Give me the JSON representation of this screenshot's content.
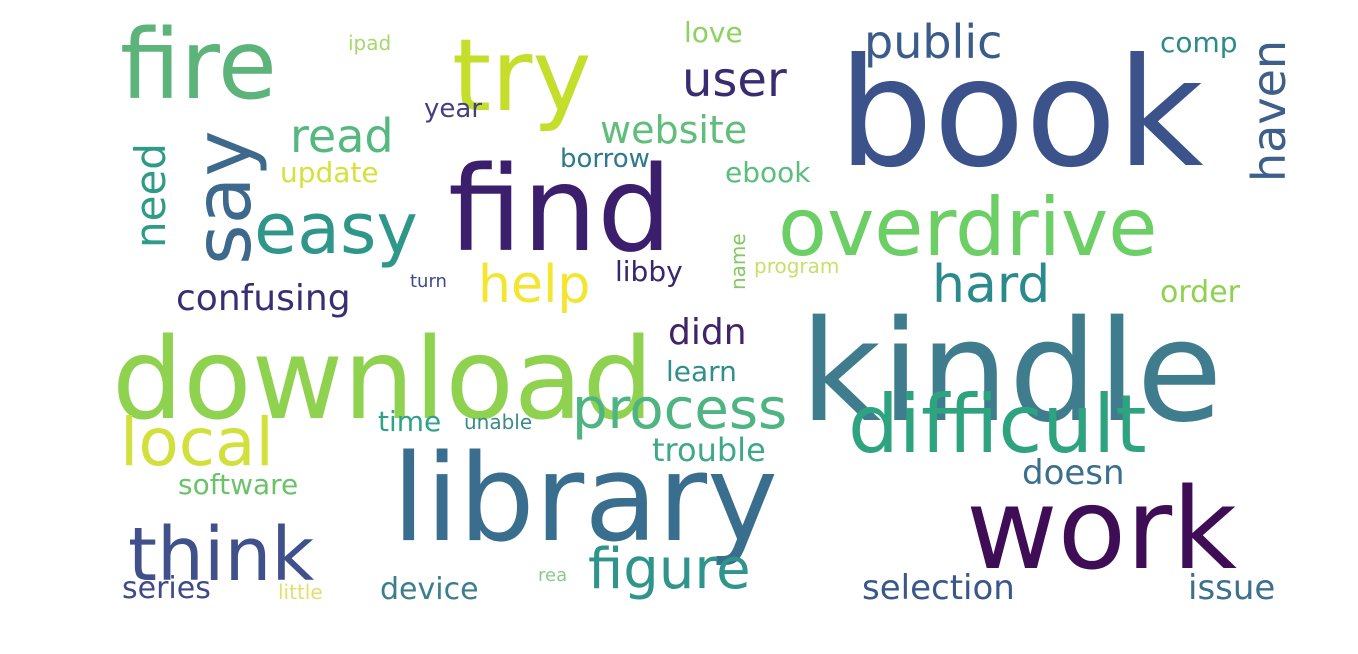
{
  "words": [
    {
      "text": "book",
      "color": "#3b528b"
    },
    {
      "text": "kindle",
      "color": "#3e7c8e"
    },
    {
      "text": "library",
      "color": "#3a6e8e"
    },
    {
      "text": "download",
      "color": "#8fd24f"
    },
    {
      "text": "find",
      "color": "#3b1f6d"
    },
    {
      "text": "try",
      "color": "#c5de2c"
    },
    {
      "text": "fire",
      "color": "#5cb47a"
    },
    {
      "text": "work",
      "color": "#3f0c56"
    },
    {
      "text": "overdrive",
      "color": "#6ccf66"
    },
    {
      "text": "difficult",
      "color": "#2ea37f"
    },
    {
      "text": "say",
      "color": "#3d6a8c"
    },
    {
      "text": "think",
      "color": "#40508b"
    },
    {
      "text": "easy",
      "color": "#2f968a"
    },
    {
      "text": "local",
      "color": "#d2e03c"
    },
    {
      "text": "process",
      "color": "#4eb482"
    },
    {
      "text": "figure",
      "color": "#2f948b"
    },
    {
      "text": "help",
      "color": "#f4e530"
    },
    {
      "text": "hard",
      "color": "#2b8a8c"
    },
    {
      "text": "user",
      "color": "#3a2c71"
    },
    {
      "text": "public",
      "color": "#3a5c8a"
    },
    {
      "text": "read",
      "color": "#55b97f"
    },
    {
      "text": "haven",
      "color": "#3d5f89"
    },
    {
      "text": "need",
      "color": "#2e9b86"
    },
    {
      "text": "website",
      "color": "#60be7a"
    },
    {
      "text": "confusing",
      "color": "#3a2e72"
    },
    {
      "text": "didn",
      "color": "#402468"
    },
    {
      "text": "doesn",
      "color": "#3b6f8e"
    },
    {
      "text": "trouble",
      "color": "#3fa88a"
    },
    {
      "text": "libby",
      "color": "#3a266c"
    },
    {
      "text": "order",
      "color": "#8fd24f"
    },
    {
      "text": "selection",
      "color": "#3a578b"
    },
    {
      "text": "issue",
      "color": "#3e6f8c"
    },
    {
      "text": "series",
      "color": "#3f4a88"
    },
    {
      "text": "device",
      "color": "#3d7e8e"
    },
    {
      "text": "software",
      "color": "#6cc26a"
    },
    {
      "text": "learn",
      "color": "#2f8f8c"
    },
    {
      "text": "time",
      "color": "#2da389"
    },
    {
      "text": "unable",
      "color": "#3a8a8c"
    },
    {
      "text": "update",
      "color": "#d7e13d"
    },
    {
      "text": "borrow",
      "color": "#2e7a8c"
    },
    {
      "text": "ebook",
      "color": "#5bbe7d"
    },
    {
      "text": "year",
      "color": "#433f85"
    },
    {
      "text": "love",
      "color": "#8cd25f"
    },
    {
      "text": "comp",
      "color": "#2f8a8a"
    },
    {
      "text": "name",
      "color": "#83c860"
    },
    {
      "text": "program",
      "color": "#c8df6a"
    },
    {
      "text": "turn",
      "color": "#3f4b88"
    },
    {
      "text": "ipad",
      "color": "#a6d86a"
    },
    {
      "text": "little",
      "color": "#e3df6a"
    },
    {
      "text": "rea",
      "color": "#88cc88"
    }
  ]
}
